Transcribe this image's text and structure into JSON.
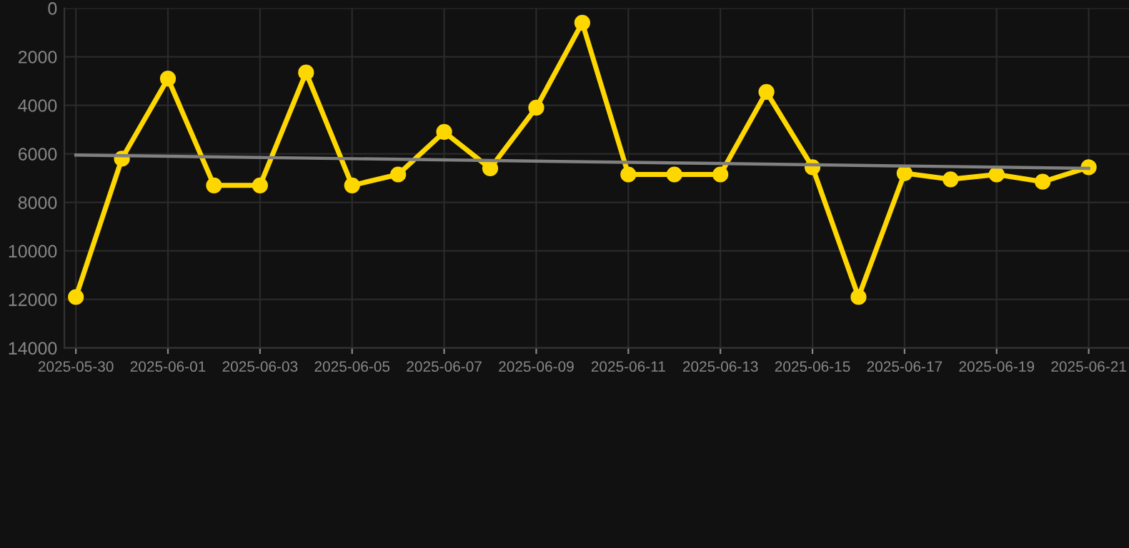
{
  "chart_data": {
    "type": "line",
    "x": [
      "2025-05-30",
      "2025-05-31",
      "2025-06-01",
      "2025-06-02",
      "2025-06-03",
      "2025-06-04",
      "2025-06-05",
      "2025-06-06",
      "2025-06-07",
      "2025-06-08",
      "2025-06-09",
      "2025-06-10",
      "2025-06-11",
      "2025-06-12",
      "2025-06-13",
      "2025-06-14",
      "2025-06-15",
      "2025-06-16",
      "2025-06-17",
      "2025-06-18",
      "2025-06-19",
      "2025-06-20",
      "2025-06-21"
    ],
    "series": [
      {
        "color": "#ffd700",
        "marker": "circle",
        "values": [
          11900,
          6200,
          2900,
          7300,
          7300,
          2650,
          7300,
          6850,
          5100,
          6600,
          4100,
          600,
          6850,
          6850,
          6850,
          3450,
          6550,
          11900,
          6800,
          7050,
          6850,
          7150,
          6550
        ]
      },
      {
        "type": "line",
        "color": "#808080",
        "marker": "none",
        "x": [
          "2025-05-30",
          "2025-06-21"
        ],
        "values": [
          6050,
          6600
        ]
      }
    ],
    "xlim": [
      "2025-05-29T18:00",
      "2025-06-21T21:00"
    ],
    "xticks": [
      "2025-05-30",
      "2025-06-01",
      "2025-06-03",
      "2025-06-05",
      "2025-06-07",
      "2025-06-09",
      "2025-06-11",
      "2025-06-13",
      "2025-06-15",
      "2025-06-17",
      "2025-06-19",
      "2025-06-21"
    ],
    "ylim": [
      14000,
      0
    ],
    "yticks": [
      0,
      2000,
      4000,
      6000,
      8000,
      10000,
      12000,
      14000
    ],
    "grid": true,
    "line_style": "solid"
  }
}
